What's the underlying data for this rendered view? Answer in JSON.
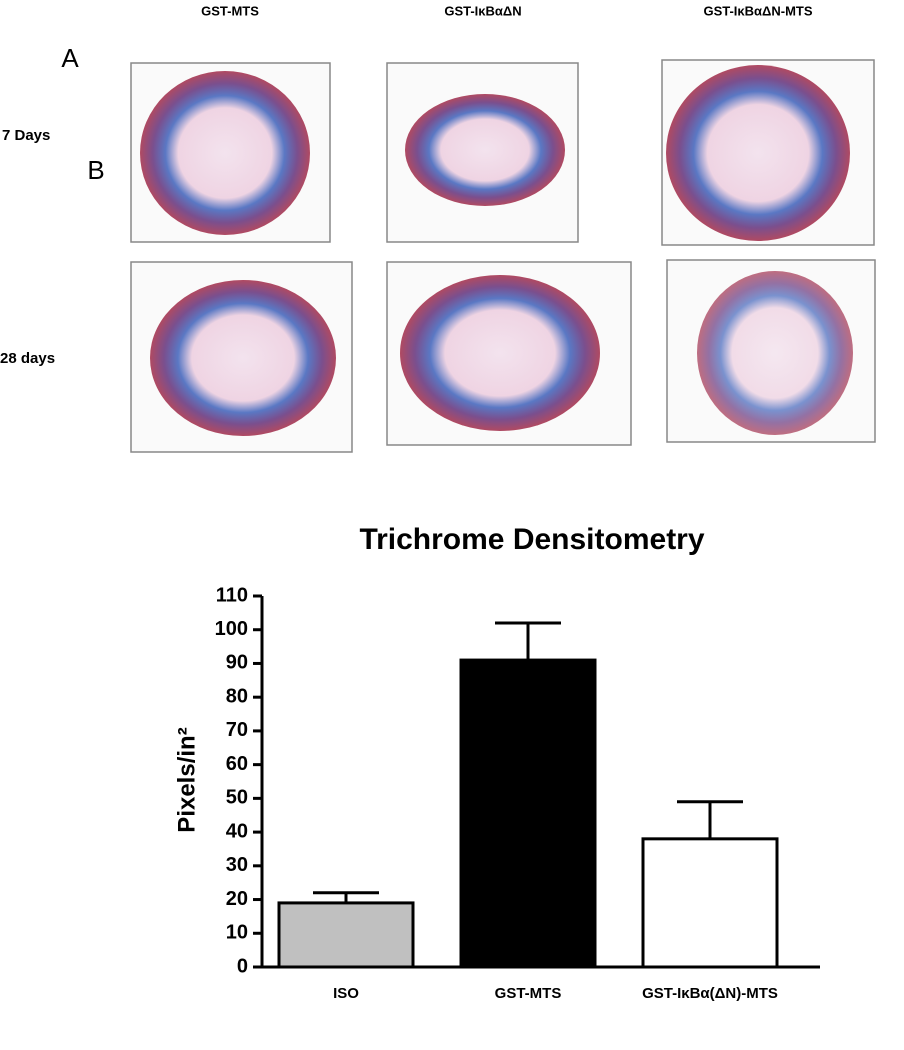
{
  "panels": {
    "letters": [
      "A",
      "B"
    ],
    "columns": [
      "GST-MTS",
      "GST-IκBαΔN",
      "GST-IκBαΔN-MTS"
    ],
    "rows": [
      "7 Days",
      "28 days"
    ]
  },
  "chart_data": {
    "type": "bar",
    "title": "Trichrome Densitometry",
    "y_label": "Pixels/in²",
    "categories": [
      "ISO",
      "GST-MTS",
      "GST-IκBα(ΔN)-MTS"
    ],
    "values": [
      19,
      91,
      38
    ],
    "errors": [
      3,
      11,
      11
    ],
    "colors": [
      "#c0c0c0",
      "#000000",
      "#ffffff"
    ],
    "ylim": [
      0,
      110
    ],
    "yticks": [
      0,
      10,
      20,
      30,
      40,
      50,
      60,
      70,
      80,
      90,
      100,
      110
    ]
  }
}
